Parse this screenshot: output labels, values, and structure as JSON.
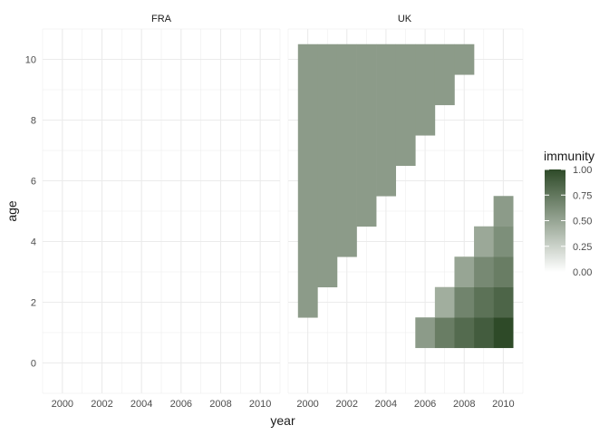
{
  "chart_data": {
    "type": "heatmap",
    "title": "",
    "xlabel": "year",
    "ylabel": "age",
    "facets": [
      "FRA",
      "UK"
    ],
    "xlim": [
      1999,
      2011
    ],
    "ylim": [
      -1,
      11
    ],
    "x_ticks": [
      2000,
      2002,
      2004,
      2006,
      2008,
      2010
    ],
    "y_ticks": [
      0,
      2,
      4,
      6,
      8,
      10
    ],
    "grid": true,
    "legend": {
      "title": "immunity",
      "position": "right",
      "ticks": [
        "1.00",
        "0.75",
        "0.50",
        "0.25",
        "0.00"
      ],
      "low_color": "#ffffff",
      "high_color": "#2e4a28"
    },
    "colors": {
      "mid_fill": "#899a80",
      "panel_grid": "#ebebeb",
      "strip_text": "#1a1a1a",
      "tick_text": "#4d4d4d"
    },
    "cells": [
      {
        "facet": "UK",
        "year": 2000,
        "age_min": 2,
        "age_max": 10,
        "immunity": 0.55
      },
      {
        "facet": "UK",
        "year": 2001,
        "age_min": 3,
        "age_max": 10,
        "immunity": 0.55
      },
      {
        "facet": "UK",
        "year": 2002,
        "age_min": 4,
        "age_max": 10,
        "immunity": 0.55
      },
      {
        "facet": "UK",
        "year": 2003,
        "age_min": 5,
        "age_max": 10,
        "immunity": 0.55
      },
      {
        "facet": "UK",
        "year": 2004,
        "age_min": 6,
        "age_max": 10,
        "immunity": 0.55
      },
      {
        "facet": "UK",
        "year": 2005,
        "age_min": 7,
        "age_max": 10,
        "immunity": 0.55
      },
      {
        "facet": "UK",
        "year": 2006,
        "age_min": 8,
        "age_max": 10,
        "immunity": 0.55
      },
      {
        "facet": "UK",
        "year": 2007,
        "age_min": 9,
        "age_max": 10,
        "immunity": 0.55
      },
      {
        "facet": "UK",
        "year": 2008,
        "age_min": 10,
        "age_max": 10,
        "immunity": 0.55
      },
      {
        "facet": "UK",
        "year": 2006,
        "age": 1,
        "immunity": 0.55
      },
      {
        "facet": "UK",
        "year": 2007,
        "age": 1,
        "immunity": 0.72
      },
      {
        "facet": "UK",
        "year": 2007,
        "age": 2,
        "immunity": 0.45
      },
      {
        "facet": "UK",
        "year": 2008,
        "age": 1,
        "immunity": 0.82
      },
      {
        "facet": "UK",
        "year": 2008,
        "age": 2,
        "immunity": 0.68
      },
      {
        "facet": "UK",
        "year": 2008,
        "age": 3,
        "immunity": 0.5
      },
      {
        "facet": "UK",
        "year": 2009,
        "age": 1,
        "immunity": 0.9
      },
      {
        "facet": "UK",
        "year": 2009,
        "age": 2,
        "immunity": 0.78
      },
      {
        "facet": "UK",
        "year": 2009,
        "age": 3,
        "immunity": 0.65
      },
      {
        "facet": "UK",
        "year": 2009,
        "age": 4,
        "immunity": 0.48
      },
      {
        "facet": "UK",
        "year": 2010,
        "age": 1,
        "immunity": 1.0
      },
      {
        "facet": "UK",
        "year": 2010,
        "age": 2,
        "immunity": 0.85
      },
      {
        "facet": "UK",
        "year": 2010,
        "age": 3,
        "immunity": 0.72
      },
      {
        "facet": "UK",
        "year": 2010,
        "age": 4,
        "immunity": 0.62
      },
      {
        "facet": "UK",
        "year": 2010,
        "age": 5,
        "immunity": 0.55
      }
    ]
  }
}
